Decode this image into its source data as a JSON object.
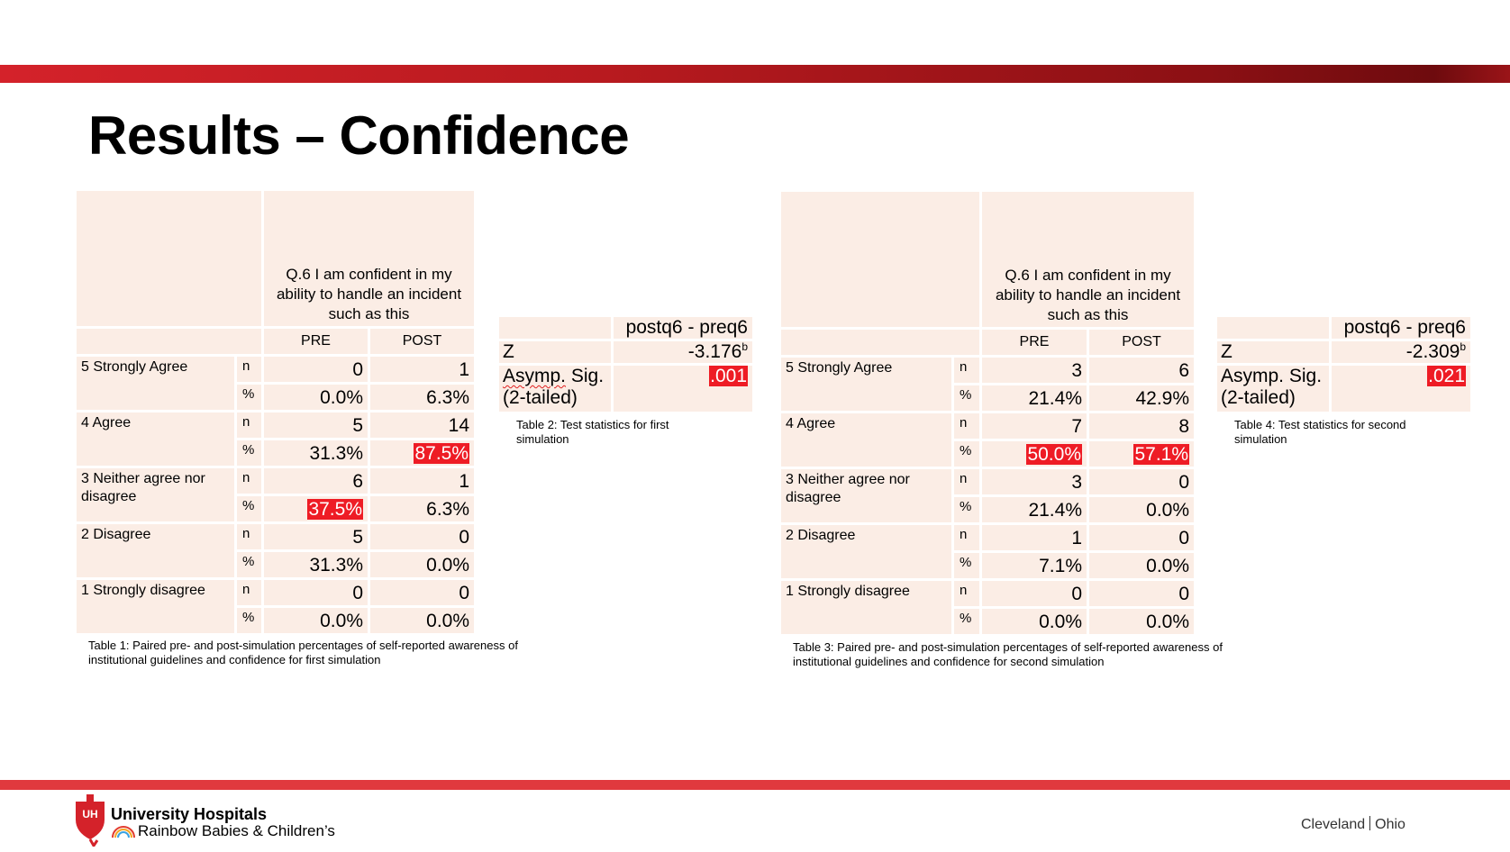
{
  "slide": {
    "title": "Results – Confidence"
  },
  "table1": {
    "question": "Q.6 I am confident in my ability to handle an incident such as this",
    "col_pre": "PRE",
    "col_post": "POST",
    "rows": [
      {
        "label": "5 Strongly Agree",
        "n_label": "n",
        "pct_label": "%",
        "n_pre": "0",
        "n_post": "1",
        "pct_pre": "0.0%",
        "pct_post": "6.3%"
      },
      {
        "label": "4 Agree",
        "n_label": "n",
        "pct_label": "%",
        "n_pre": "5",
        "n_post": "14",
        "pct_pre": "31.3%",
        "pct_post": "87.5%"
      },
      {
        "label": "3 Neither agree nor disagree",
        "n_label": "n",
        "pct_label": "%",
        "n_pre": "6",
        "n_post": "1",
        "pct_pre": "37.5%",
        "pct_post": "6.3%"
      },
      {
        "label": "2 Disagree",
        "n_label": "n",
        "pct_label": "%",
        "n_pre": "5",
        "n_post": "0",
        "pct_pre": "31.3%",
        "pct_post": "0.0%"
      },
      {
        "label": "1 Strongly disagree",
        "n_label": "n",
        "pct_label": "%",
        "n_pre": "0",
        "n_post": "0",
        "pct_pre": "0.0%",
        "pct_post": "0.0%"
      }
    ],
    "highlighted": [
      "4 Agree POST %",
      "3 Neither agree nor disagree PRE %"
    ],
    "caption": "Table 1: Paired pre- and post-simulation percentages of self-reported awareness of institutional guidelines and confidence for first simulation"
  },
  "table2": {
    "header": "postq6 - preq6",
    "z_label": "Z",
    "z_value": "-3.176",
    "z_sup": "b",
    "sig_label_1": "Asymp.",
    "sig_label_2": "Sig.",
    "sig_label_3": "(2-tailed)",
    "sig_value": ".001",
    "caption": "Table 2: Test statistics for first simulation"
  },
  "table3": {
    "question": "Q.6 I am confident in my ability to handle an incident such as this",
    "col_pre": "PRE",
    "col_post": "POST",
    "rows": [
      {
        "label": "5 Strongly Agree",
        "n_label": "n",
        "pct_label": "%",
        "n_pre": "3",
        "n_post": "6",
        "pct_pre": "21.4%",
        "pct_post": "42.9%"
      },
      {
        "label": "4 Agree",
        "n_label": "n",
        "pct_label": "%",
        "n_pre": "7",
        "n_post": "8",
        "pct_pre": "50.0%",
        "pct_post": "57.1%"
      },
      {
        "label": "3 Neither agree nor disagree",
        "n_label": "n",
        "pct_label": "%",
        "n_pre": "3",
        "n_post": "0",
        "pct_pre": "21.4%",
        "pct_post": "0.0%"
      },
      {
        "label": "2 Disagree",
        "n_label": "n",
        "pct_label": "%",
        "n_pre": "1",
        "n_post": "0",
        "pct_pre": "7.1%",
        "pct_post": "0.0%"
      },
      {
        "label": "1 Strongly disagree",
        "n_label": "n",
        "pct_label": "%",
        "n_pre": "0",
        "n_post": "0",
        "pct_pre": "0.0%",
        "pct_post": "0.0%"
      }
    ],
    "highlighted": [
      "4 Agree PRE %",
      "4 Agree POST %"
    ],
    "caption": "Table 3: Paired pre- and post-simulation percentages of self-reported awareness of institutional guidelines and confidence for second simulation"
  },
  "table4": {
    "header": "postq6 - preq6",
    "z_label": "Z",
    "z_value": "-2.309",
    "z_sup": "b",
    "sig_label_1": "Asymp.",
    "sig_label_2": "Sig.",
    "sig_label_3": "(2-tailed)",
    "sig_value": ".021",
    "caption": "Table 4: Test statistics for second simulation"
  },
  "footer": {
    "logo_mark": "UH",
    "org_name": "University Hospitals",
    "sub_name": "Rainbow Babies & Children’s",
    "city": "Cleveland",
    "state": "Ohio"
  },
  "colors": {
    "brand_red": "#d4222a",
    "highlight_red": "#ee1c25",
    "cell_fill": "#fbede5",
    "footer_bar": "#e0393e"
  }
}
